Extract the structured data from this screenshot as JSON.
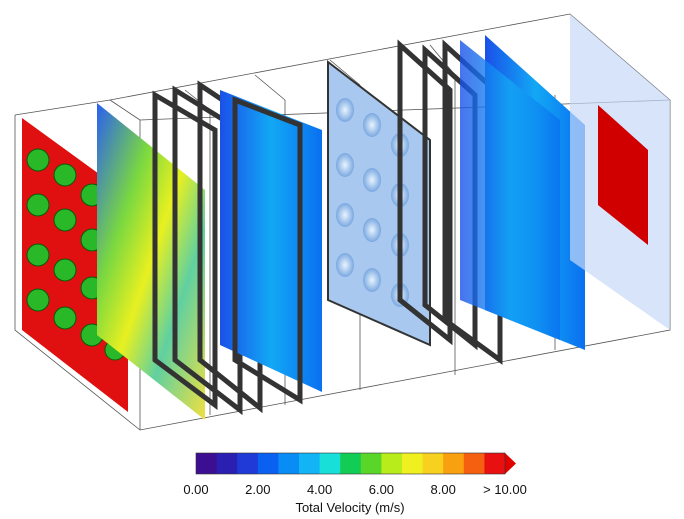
{
  "colorbar": {
    "title": "Total Velocity (m/s)",
    "ticks": [
      "0.00",
      "2.00",
      "4.00",
      "6.00",
      "8.00",
      "> 10.00"
    ],
    "colors": [
      "#3b0f8f",
      "#2a1fb0",
      "#1f3ad6",
      "#0a60f0",
      "#0a8cf5",
      "#12b4f5",
      "#18e0d8",
      "#12cc55",
      "#5ad62a",
      "#b8ec1a",
      "#f0f020",
      "#f8d020",
      "#f8a010",
      "#f46010",
      "#e81010"
    ],
    "arrow_color": "#e00000"
  }
}
